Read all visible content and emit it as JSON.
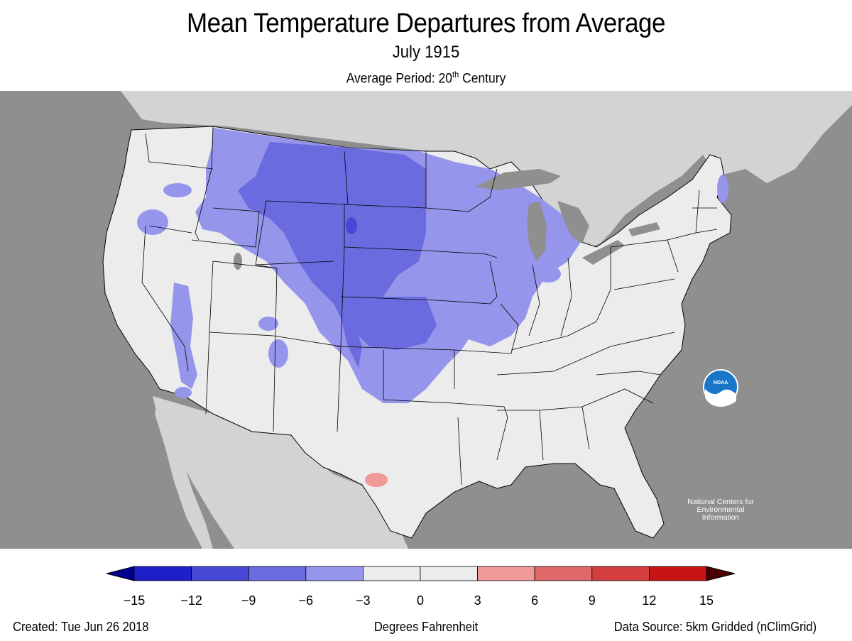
{
  "title": "Mean Temperature Departures from Average",
  "subtitle": "July 1915",
  "period": {
    "prefix": "Average Period: 20",
    "superscript": "th",
    "suffix": " Century"
  },
  "logo": {
    "icon": "noaa-logo-icon",
    "text_lines": [
      "National Centers for",
      "Environmental",
      "Information"
    ]
  },
  "legend": {
    "ticks": [
      "−15",
      "−12",
      "−9",
      "−6",
      "−3",
      "0",
      "3",
      "6",
      "9",
      "12",
      "15"
    ],
    "bins": [
      {
        "range": "< −15",
        "color": "#00008b"
      },
      {
        "range": "−15 to −12",
        "color": "#1f1fc8"
      },
      {
        "range": "−12 to −9",
        "color": "#4848d6"
      },
      {
        "range": "−9 to −6",
        "color": "#6b6be0"
      },
      {
        "range": "−6 to −3",
        "color": "#9595ec"
      },
      {
        "range": "−3 to 0",
        "color": "#ececec"
      },
      {
        "range": "0 to 3",
        "color": "#ececec"
      },
      {
        "range": "3 to 6",
        "color": "#ef9999"
      },
      {
        "range": "6 to 9",
        "color": "#e06a6a"
      },
      {
        "range": "9 to 12",
        "color": "#d43d3d"
      },
      {
        "range": "12 to 15",
        "color": "#c81414"
      },
      {
        "range": "> 15",
        "color": "#4a0000"
      }
    ]
  },
  "colors": {
    "ocean": "#8f8f8f",
    "foreign_land": "#d3d3d3",
    "near_normal": "#ececec",
    "lakes": "#8f8f8f",
    "logo_blue": "#1a76c8"
  },
  "footer": {
    "created": "Created: Tue Jun 26 2018",
    "units": "Degrees Fahrenheit",
    "source": "Data Source: 5km Gridded (nClimGrid)"
  }
}
